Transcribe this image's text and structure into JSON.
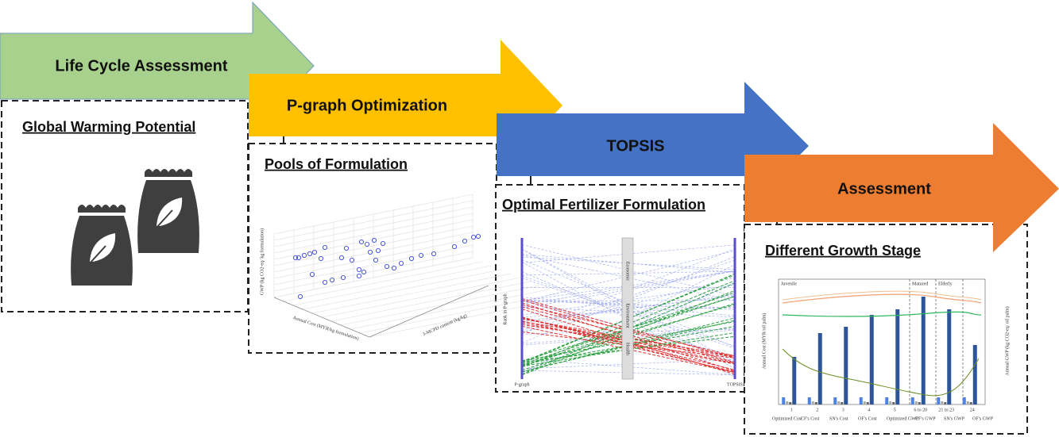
{
  "stages": [
    "Life Cycle Assessment",
    "P-graph Optimization",
    "TOPSIS",
    "Assessment"
  ],
  "panels": [
    "Global Warming Potential",
    "Pools of Formulation",
    "Optimal Fertilizer Formulation",
    "Different Growth Stage"
  ],
  "pools_chart": {
    "y_label": "GWP (kg CO2-eq/ kg formulation)",
    "x_label": "Annual Cost (MYR/kg formulation)",
    "z_label": "3-MCPD content (kg/kg)"
  },
  "ranking_chart": {
    "y_label": "Rank in P-graph",
    "left_axis": "P-graph",
    "right_axis": "TOPSIS",
    "criteria": [
      "Economic",
      "Environment",
      "Health"
    ]
  },
  "growth_chart": {
    "stages": [
      "Juvenile",
      "Matured",
      "Elderly"
    ],
    "categories": [
      "1",
      "2",
      "3",
      "4",
      "5",
      "6 to 20",
      "21 to 23",
      "24"
    ],
    "y_label": "Annual Cost (MYR/oil palm)",
    "y2_label": "Annual GWP (kg CO2-eq/ oil palm)",
    "legend": [
      "Optimized Cost",
      "CF's Cost",
      "SN's Cost",
      "OF's Cost",
      "Optimized GWP",
      "CF's GWP",
      "SN's GWP",
      "OF's GWP"
    ]
  }
}
